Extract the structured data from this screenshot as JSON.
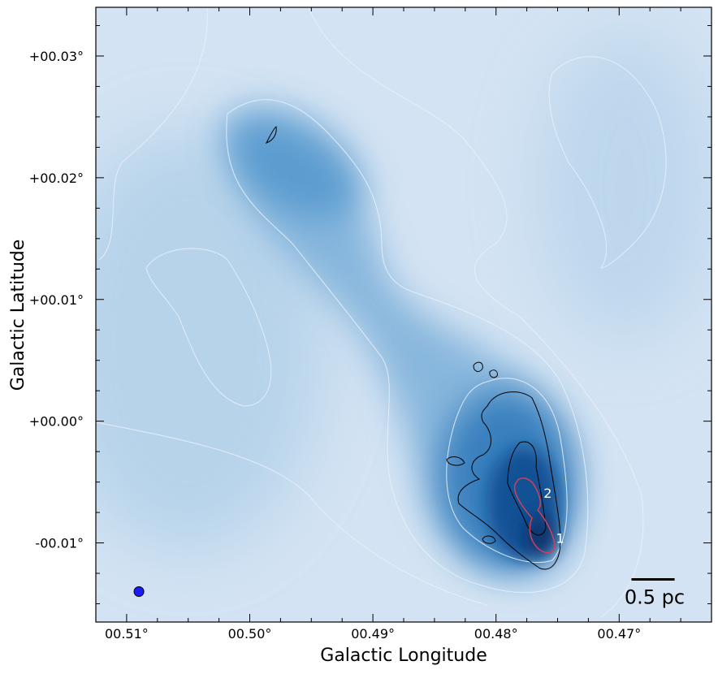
{
  "chart_data": {
    "type": "heatmap",
    "title": "",
    "xlabel": "Galactic Longitude",
    "ylabel": "Galactic Latitude",
    "xlim": [
      0.5125,
      0.4625
    ],
    "ylim": [
      -0.0165,
      0.034
    ],
    "x_ticks": [
      {
        "value": 0.51,
        "label": "00.51°"
      },
      {
        "value": 0.5,
        "label": "00.50°"
      },
      {
        "value": 0.49,
        "label": "00.49°"
      },
      {
        "value": 0.48,
        "label": "00.48°"
      },
      {
        "value": 0.47,
        "label": "00.47°"
      }
    ],
    "y_ticks": [
      {
        "value": 0.03,
        "label": "+00.03°"
      },
      {
        "value": 0.02,
        "label": "+00.02°"
      },
      {
        "value": 0.01,
        "label": "+00.01°"
      },
      {
        "value": 0.0,
        "label": "+00.00°"
      },
      {
        "value": -0.01,
        "label": "-00.01°"
      }
    ],
    "colormap": [
      "#dce8f5",
      "#a9cde4",
      "#5a9fd0",
      "#2272b6",
      "#08306b"
    ],
    "emission_peaks": [
      {
        "l": 0.4905,
        "b": 0.0205,
        "intensity": 0.55
      },
      {
        "l": 0.496,
        "b": 0.0235,
        "intensity": 0.45
      },
      {
        "l": 0.479,
        "b": -0.002,
        "intensity": 0.7
      },
      {
        "l": 0.476,
        "b": -0.007,
        "intensity": 0.9
      },
      {
        "l": 0.475,
        "b": -0.01,
        "intensity": 1.0
      }
    ],
    "sources": [
      {
        "label": "1",
        "l": 0.4748,
        "b": -0.0096
      },
      {
        "label": "2",
        "l": 0.4758,
        "b": -0.0059
      }
    ],
    "beam": {
      "l": 0.509,
      "b": -0.014,
      "color": "#1a1aff"
    },
    "scalebar": {
      "label": "0.5 pc",
      "length_deg": 0.0035,
      "l_end": 0.4655,
      "b": -0.013
    },
    "contour_colors": {
      "white": "#e8f0fa",
      "black": "#000000",
      "red": "#d0405a"
    },
    "grid": false,
    "legend": "none"
  }
}
